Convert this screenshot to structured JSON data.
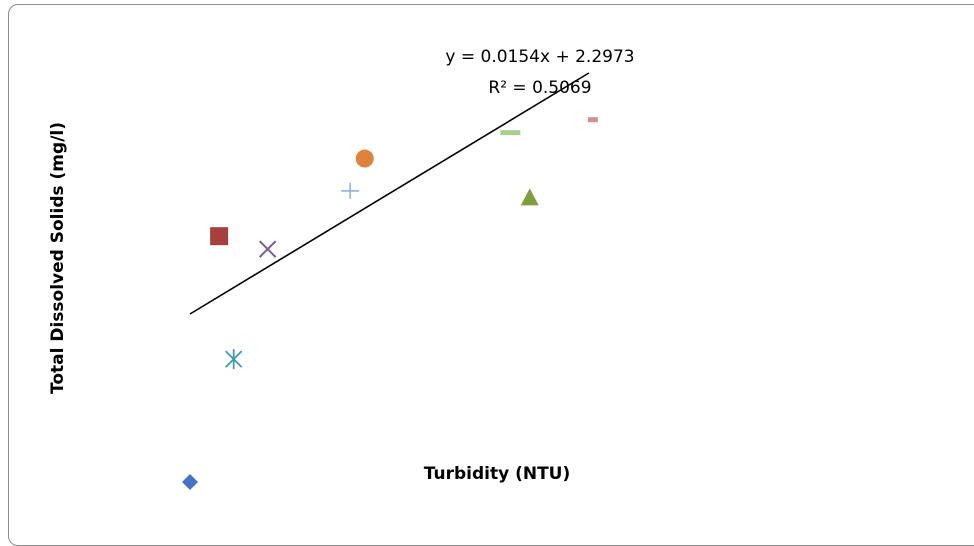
{
  "chart_data": {
    "type": "scatter",
    "title": "",
    "xlabel": "Turbidity (NTU)",
    "ylabel": "Total Dissolved Solids (mg/l)",
    "xlim": [
      0,
      65
    ],
    "ylim": [
      0,
      3.4
    ],
    "grid": false,
    "legend": "none",
    "series": [
      {
        "marker": "diamond",
        "color": "#4472C4",
        "points": [
          [
            0,
            0.1
          ]
        ]
      },
      {
        "marker": "square",
        "color": "#A5403D",
        "points": [
          [
            3,
            2.0
          ]
        ]
      },
      {
        "marker": "triangle",
        "color": "#7F9F3F",
        "points": [
          [
            35,
            2.3
          ]
        ]
      },
      {
        "marker": "x",
        "color": "#7A5F9A",
        "points": [
          [
            8,
            1.9
          ]
        ]
      },
      {
        "marker": "star",
        "color": "#3C9BB0",
        "points": [
          [
            4.5,
            1.05
          ]
        ]
      },
      {
        "marker": "circle",
        "color": "#E0833A",
        "points": [
          [
            18,
            2.6
          ]
        ]
      },
      {
        "marker": "plus",
        "color": "#8FAADC",
        "points": [
          [
            16.5,
            2.35
          ]
        ]
      },
      {
        "marker": "dash",
        "color": "#A9CD8C",
        "points": [
          [
            33,
            2.8
          ]
        ]
      },
      {
        "marker": "short-dash",
        "color": "#D98C95",
        "points": [
          [
            41.5,
            2.9
          ]
        ]
      }
    ],
    "trendline": {
      "equation": "y = 0.0154x + 2.2973",
      "r_squared": "R² = 0.5069",
      "color": "#000000",
      "x_range": [
        0,
        41.5
      ]
    }
  }
}
